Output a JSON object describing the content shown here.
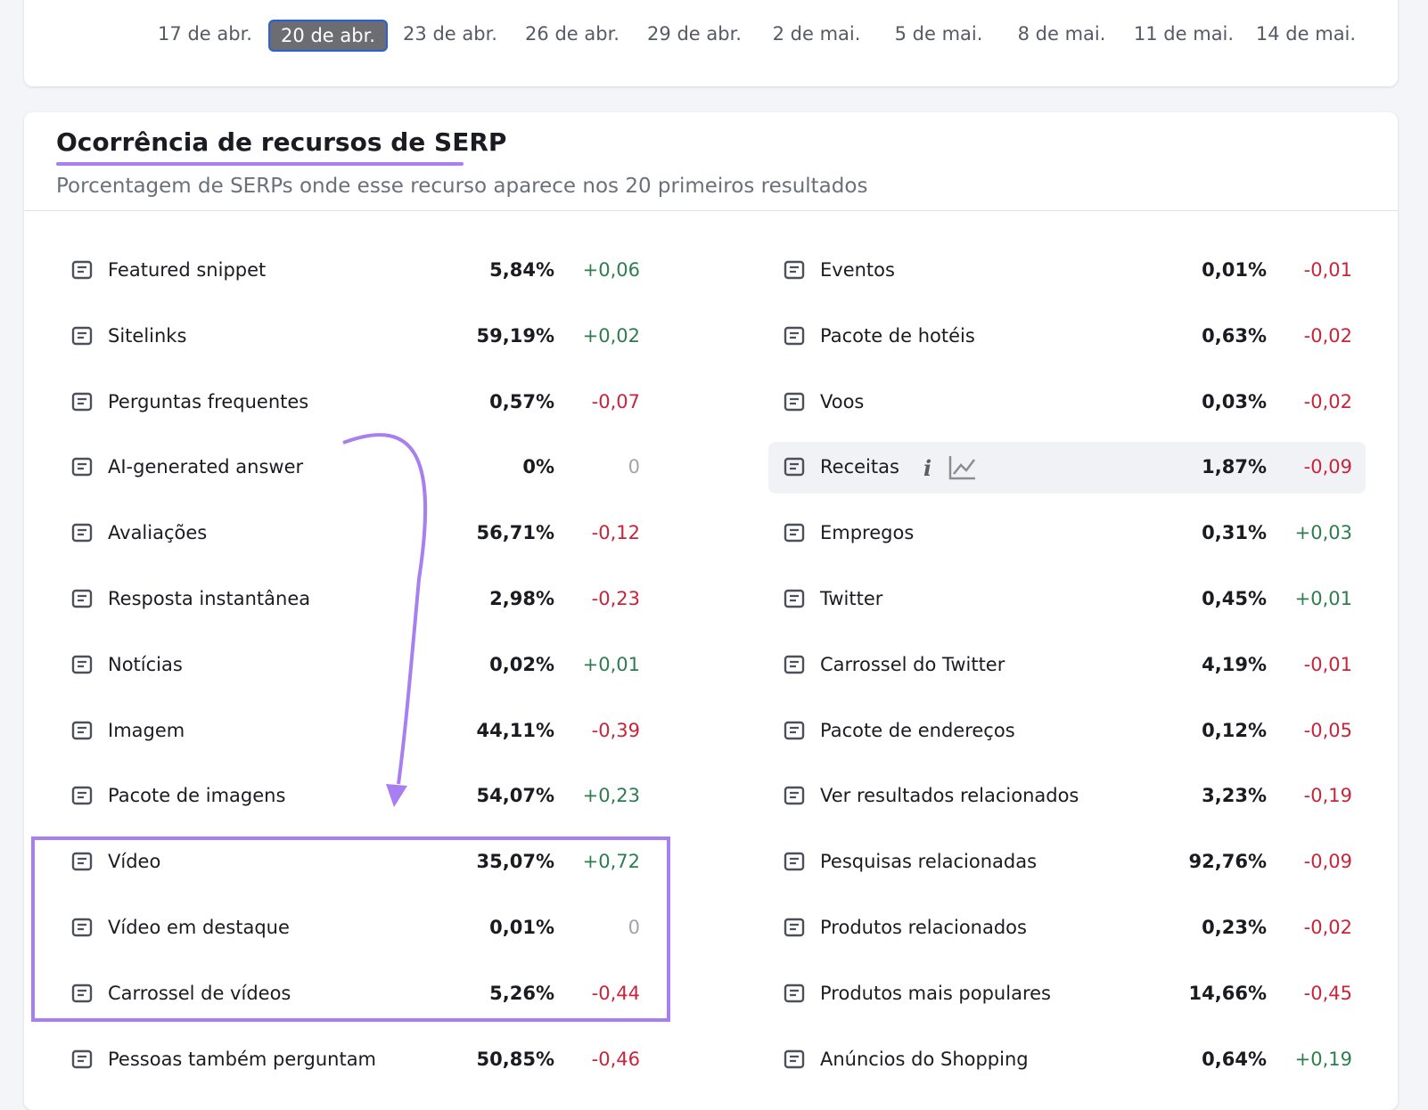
{
  "dates": {
    "items": [
      "17 de abr.",
      "20 de abr.",
      "23 de abr.",
      "26 de abr.",
      "29 de abr.",
      "2 de mai.",
      "5 de mai.",
      "8 de mai.",
      "11 de mai.",
      "14 de mai."
    ],
    "selected": 1
  },
  "section": {
    "title": "Ocorrência de recursos de SERP",
    "subtitle": "Porcentagem de SERPs onde esse recurso aparece nos 20 primeiros resultados"
  },
  "left": [
    {
      "label": "Featured snippet",
      "value": "5,84%",
      "change": "+0,06"
    },
    {
      "label": "Sitelinks",
      "value": "59,19%",
      "change": "+0,02"
    },
    {
      "label": "Perguntas frequentes",
      "value": "0,57%",
      "change": "-0,07"
    },
    {
      "label": "AI-generated answer",
      "value": "0%",
      "change": "0"
    },
    {
      "label": "Avaliações",
      "value": "56,71%",
      "change": "-0,12"
    },
    {
      "label": "Resposta instantânea",
      "value": "2,98%",
      "change": "-0,23"
    },
    {
      "label": "Notícias",
      "value": "0,02%",
      "change": "+0,01"
    },
    {
      "label": "Imagem",
      "value": "44,11%",
      "change": "-0,39"
    },
    {
      "label": "Pacote de imagens",
      "value": "54,07%",
      "change": "+0,23"
    },
    {
      "label": "Vídeo",
      "value": "35,07%",
      "change": "+0,72"
    },
    {
      "label": "Vídeo em destaque",
      "value": "0,01%",
      "change": "0"
    },
    {
      "label": "Carrossel de vídeos",
      "value": "5,26%",
      "change": "-0,44"
    },
    {
      "label": "Pessoas também perguntam",
      "value": "50,85%",
      "change": "-0,46"
    }
  ],
  "right": [
    {
      "label": "Eventos",
      "value": "0,01%",
      "change": "-0,01"
    },
    {
      "label": "Pacote de hotéis",
      "value": "0,63%",
      "change": "-0,02"
    },
    {
      "label": "Voos",
      "value": "0,03%",
      "change": "-0,02"
    },
    {
      "label": "Receitas",
      "value": "1,87%",
      "change": "-0,09"
    },
    {
      "label": "Empregos",
      "value": "0,31%",
      "change": "+0,03"
    },
    {
      "label": "Twitter",
      "value": "0,45%",
      "change": "+0,01"
    },
    {
      "label": "Carrossel do Twitter",
      "value": "4,19%",
      "change": "-0,01"
    },
    {
      "label": "Pacote de endereços",
      "value": "0,12%",
      "change": "-0,05"
    },
    {
      "label": "Ver resultados relacionados",
      "value": "3,23%",
      "change": "-0,19"
    },
    {
      "label": "Pesquisas relacionadas",
      "value": "92,76%",
      "change": "-0,09"
    },
    {
      "label": "Produtos relacionados",
      "value": "0,23%",
      "change": "-0,02"
    },
    {
      "label": "Produtos mais populares",
      "value": "14,66%",
      "change": "-0,45"
    },
    {
      "label": "Anúncios do Shopping",
      "value": "0,64%",
      "change": "+0,19"
    }
  ]
}
